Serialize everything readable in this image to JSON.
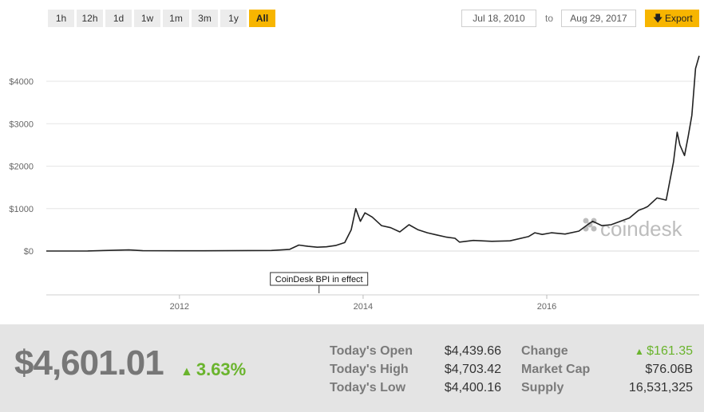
{
  "range_buttons": [
    "1h",
    "12h",
    "1d",
    "1w",
    "1m",
    "3m",
    "1y",
    "All"
  ],
  "active_range": "All",
  "date_from": "Jul 18, 2010",
  "to_label": "to",
  "date_to": "Aug 29, 2017",
  "export_label": "Export",
  "accent_color": "#f7b500",
  "up_color": "#6ab42d",
  "watermark": "coindesk",
  "chart_data": {
    "type": "line",
    "x_ticks": [
      "2012",
      "2014",
      "2016"
    ],
    "y_ticks": [
      "$0",
      "$1000",
      "$2000",
      "$3000",
      "$4000"
    ],
    "ylim": [
      0,
      4600
    ],
    "xlim": [
      2010.55,
      2017.66
    ],
    "grid": true,
    "annotation": {
      "text": "CoinDesk BPI in effect",
      "x": 2013.52
    },
    "series": [
      {
        "x": [
          2010.55,
          2011.0,
          2011.45,
          2011.6,
          2012.0,
          2012.5,
          2013.0,
          2013.2,
          2013.3,
          2013.4,
          2013.5,
          2013.6,
          2013.7,
          2013.8,
          2013.87,
          2013.92,
          2013.97,
          2014.02,
          2014.1,
          2014.2,
          2014.3,
          2014.4,
          2014.5,
          2014.6,
          2014.7,
          2014.8,
          2014.9,
          2015.0,
          2015.05,
          2015.2,
          2015.4,
          2015.6,
          2015.8,
          2015.87,
          2015.95,
          2016.05,
          2016.2,
          2016.35,
          2016.45,
          2016.5,
          2016.6,
          2016.7,
          2016.8,
          2016.9,
          2017.0,
          2017.05,
          2017.1,
          2017.2,
          2017.3,
          2017.38,
          2017.42,
          2017.45,
          2017.5,
          2017.54,
          2017.58,
          2017.62,
          2017.66
        ],
        "y": [
          0,
          1,
          26,
          8,
          5,
          7,
          13,
          40,
          140,
          110,
          90,
          100,
          130,
          200,
          500,
          1000,
          700,
          900,
          800,
          600,
          550,
          450,
          620,
          500,
          430,
          380,
          330,
          300,
          210,
          250,
          230,
          240,
          340,
          430,
          390,
          430,
          400,
          470,
          630,
          700,
          600,
          620,
          700,
          780,
          960,
          1000,
          1050,
          1250,
          1200,
          2100,
          2800,
          2500,
          2250,
          2700,
          3200,
          4300,
          4601
        ]
      }
    ]
  },
  "stats": {
    "price": "$4,601.01",
    "percent": "3.63%",
    "open_label": "Today's Open",
    "open_value": "$4,439.66",
    "high_label": "Today's High",
    "high_value": "$4,703.42",
    "low_label": "Today's Low",
    "low_value": "$4,400.16",
    "change_label": "Change",
    "change_value": "$161.35",
    "cap_label": "Market Cap",
    "cap_value": "$76.06B",
    "supply_label": "Supply",
    "supply_value": "16,531,325"
  }
}
